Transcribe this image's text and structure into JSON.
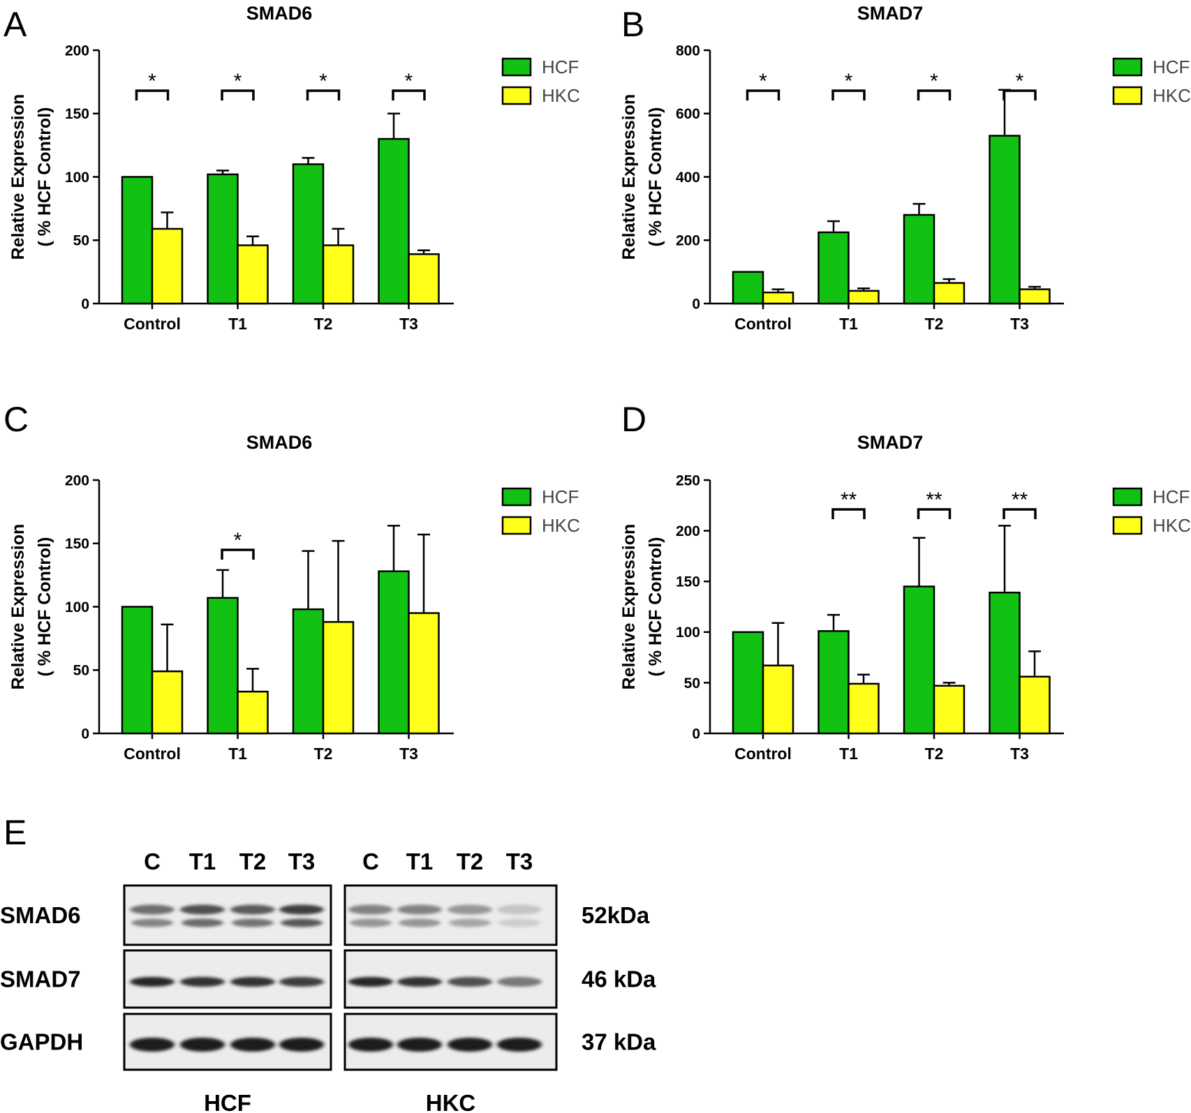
{
  "colors": {
    "HCF": "#12c212",
    "HKC": "#ffff1a",
    "axis": "#000000"
  },
  "chart_data": [
    {
      "panel": "A",
      "type": "bar",
      "title": "SMAD6",
      "ylabel": [
        "Relative Expression",
        "( % HCF Control)"
      ],
      "ylim": [
        0,
        200
      ],
      "yticks": [
        0,
        50,
        100,
        150,
        200
      ],
      "categories": [
        "Control",
        "T1",
        "T2",
        "T3"
      ],
      "series": [
        {
          "name": "HCF",
          "values": [
            100,
            102,
            110,
            130
          ],
          "errors": [
            0,
            3,
            5,
            20
          ]
        },
        {
          "name": "HKC",
          "values": [
            59,
            46,
            46,
            39
          ],
          "errors": [
            13,
            7,
            13,
            3
          ]
        }
      ],
      "significance": [
        {
          "category": "Control",
          "mark": "*"
        },
        {
          "category": "T1",
          "mark": "*"
        },
        {
          "category": "T2",
          "mark": "*"
        },
        {
          "category": "T3",
          "mark": "*"
        }
      ],
      "legend": [
        "HCF",
        "HKC"
      ],
      "legend_position": "right"
    },
    {
      "panel": "B",
      "type": "bar",
      "title": "SMAD7",
      "ylabel": [
        "Relative Expression",
        "( % HCF Control)"
      ],
      "ylim": [
        0,
        800
      ],
      "yticks": [
        0,
        200,
        400,
        600,
        800
      ],
      "categories": [
        "Control",
        "T1",
        "T2",
        "T3"
      ],
      "series": [
        {
          "name": "HCF",
          "values": [
            100,
            225,
            280,
            530
          ],
          "errors": [
            0,
            35,
            35,
            145
          ]
        },
        {
          "name": "HKC",
          "values": [
            35,
            40,
            65,
            45
          ],
          "errors": [
            10,
            8,
            12,
            8
          ]
        }
      ],
      "significance": [
        {
          "category": "Control",
          "mark": "*"
        },
        {
          "category": "T1",
          "mark": "*"
        },
        {
          "category": "T2",
          "mark": "*"
        },
        {
          "category": "T3",
          "mark": "*"
        }
      ],
      "legend": [
        "HCF",
        "HKC"
      ],
      "legend_position": "right"
    },
    {
      "panel": "C",
      "type": "bar",
      "title": "SMAD6",
      "ylabel": [
        "Relative Expression",
        "( % HCF Control)"
      ],
      "ylim": [
        0,
        200
      ],
      "yticks": [
        0,
        50,
        100,
        150,
        200
      ],
      "categories": [
        "Control",
        "T1",
        "T2",
        "T3"
      ],
      "series": [
        {
          "name": "HCF",
          "values": [
            100,
            107,
            98,
            128
          ],
          "errors": [
            0,
            22,
            46,
            36
          ]
        },
        {
          "name": "HKC",
          "values": [
            49,
            33,
            88,
            95
          ],
          "errors": [
            37,
            18,
            64,
            62
          ]
        }
      ],
      "significance": [
        {
          "category": "T1",
          "mark": "*"
        }
      ],
      "legend": [
        "HCF",
        "HKC"
      ],
      "legend_position": "right"
    },
    {
      "panel": "D",
      "type": "bar",
      "title": "SMAD7",
      "ylabel": [
        "Relative Expression",
        "( % HCF Control)"
      ],
      "ylim": [
        0,
        250
      ],
      "yticks": [
        0,
        50,
        100,
        150,
        200,
        250
      ],
      "categories": [
        "Control",
        "T1",
        "T2",
        "T3"
      ],
      "series": [
        {
          "name": "HCF",
          "values": [
            100,
            101,
            145,
            139
          ],
          "errors": [
            0,
            16,
            48,
            66
          ]
        },
        {
          "name": "HKC",
          "values": [
            67,
            49,
            47,
            56
          ],
          "errors": [
            42,
            9,
            3,
            25
          ]
        }
      ],
      "significance": [
        {
          "category": "T1",
          "mark": "**"
        },
        {
          "category": "T2",
          "mark": "**"
        },
        {
          "category": "T3",
          "mark": "**"
        }
      ],
      "legend": [
        "HCF",
        "HKC"
      ],
      "legend_position": "right"
    }
  ],
  "western_blot": {
    "panel": "E",
    "lanes": [
      "C",
      "T1",
      "T2",
      "T3"
    ],
    "groups": [
      "HCF",
      "HKC"
    ],
    "proteins": [
      {
        "name": "SMAD6",
        "size": "52kDa",
        "intensity": {
          "HCF": [
            0.55,
            0.7,
            0.65,
            0.8
          ],
          "HKC": [
            0.45,
            0.45,
            0.35,
            0.12
          ]
        },
        "double_band": true
      },
      {
        "name": "SMAD7",
        "size": "46 kDa",
        "intensity": {
          "HCF": [
            0.9,
            0.85,
            0.85,
            0.8
          ],
          "HKC": [
            0.9,
            0.85,
            0.7,
            0.5
          ]
        },
        "double_band": false
      },
      {
        "name": "GAPDH",
        "size": "37 kDa",
        "intensity": {
          "HCF": [
            0.95,
            0.95,
            0.95,
            0.95
          ],
          "HKC": [
            0.95,
            0.95,
            0.95,
            0.95
          ]
        },
        "double_band": false
      }
    ]
  }
}
